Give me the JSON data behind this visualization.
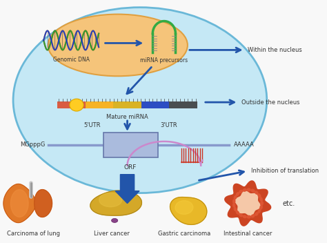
{
  "bg_color": "#f8f8f8",
  "cell_color": "#c5e8f5",
  "cell_edge": "#6ab8d8",
  "nucleus_color": "#f5c47a",
  "nucleus_edge": "#e0a040",
  "arrow_color": "#2255aa",
  "pink_color": "#cc88bb",
  "text_color": "#333333",
  "labels": {
    "genomic_dna": "Genomic DNA",
    "mirna_precursors": "miRNA precursors",
    "within_nucleus": "Within the nucleus",
    "outside_nucleus": "Outside the nucleus",
    "mature_mirna": "Mature miRNA",
    "mgpppg": "MGpppG",
    "five_utr": "5'UTR",
    "three_utr": "3'UTR",
    "aaaaa": "AAAAA",
    "orf": "ORF",
    "inhibition": "Inhibition of translation",
    "lung": "Carcinoma of lung",
    "liver": "Liver cancer",
    "gastric": "Gastric carcinoma",
    "intestinal": "Intestinal cancer",
    "etc": "etc."
  }
}
